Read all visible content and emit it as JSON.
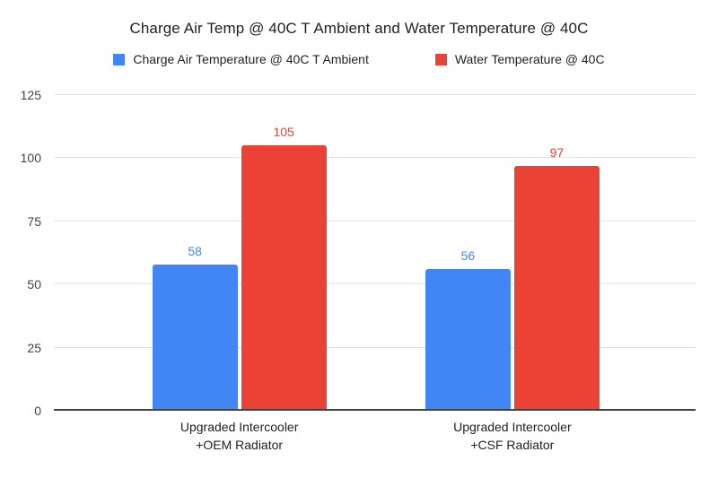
{
  "title": "Charge Air Temp @ 40C T Ambient and Water Temperature @ 40C",
  "legend": [
    {
      "label": "Charge Air Temperature @ 40C T Ambient",
      "color": "#4285F4"
    },
    {
      "label": "Water Temperature @ 40C",
      "color": "#EA4335"
    }
  ],
  "colors": {
    "series_blue": "#4285F4",
    "series_red": "#EA4335",
    "gridline": "#e3e3e3",
    "axis_baseline": "#424242",
    "title_text": "#202124",
    "tick_text": "#424242"
  },
  "chart_data": {
    "type": "bar",
    "title": "Charge Air Temp @ 40C T Ambient and Water Temperature @ 40C",
    "categories": [
      "Upgraded Intercooler\n+OEM Radiator",
      "Upgraded Intercooler\n+CSF Radiator"
    ],
    "series": [
      {
        "name": "Charge Air Temperature @ 40C T Ambient",
        "color": "#4285F4",
        "values": [
          58,
          56
        ]
      },
      {
        "name": "Water Temperature @ 40C",
        "color": "#EA4335",
        "values": [
          105,
          97
        ]
      }
    ],
    "xlabel": "",
    "ylabel": "",
    "ylim": [
      0,
      125
    ],
    "yticks": [
      0,
      25,
      50,
      75,
      100,
      125
    ],
    "grid": true,
    "legend_position": "top",
    "data_labels": true
  }
}
